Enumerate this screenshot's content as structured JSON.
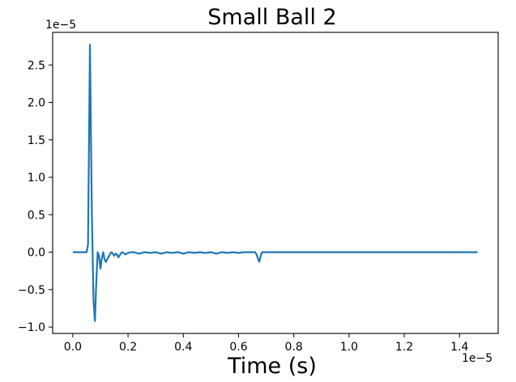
{
  "chart_data": {
    "type": "line",
    "title": "Small Ball 2",
    "xlabel": "Time (s)",
    "ylabel": "",
    "x_offset_label": "1e−5",
    "y_offset_label": "1e−5",
    "xlim": [
      -0.073,
      1.54
    ],
    "ylim": [
      -1.085,
      2.935
    ],
    "x_ticks": [
      0.0,
      0.2,
      0.4,
      0.6,
      0.8,
      1.0,
      1.2,
      1.4
    ],
    "x_tick_labels": [
      "0.0",
      "0.2",
      "0.4",
      "0.6",
      "0.8",
      "1.0",
      "1.2",
      "1.4"
    ],
    "y_ticks": [
      -1.0,
      -0.5,
      0.0,
      0.5,
      1.0,
      1.5,
      2.0,
      2.5
    ],
    "y_tick_labels": [
      "−1.0",
      "−0.5",
      "0.0",
      "0.5",
      "1.0",
      "1.5",
      "2.0",
      "2.5"
    ],
    "grid": false,
    "series": [
      {
        "color": "#1f77b4",
        "x": [
          0.0,
          0.02,
          0.04,
          0.05,
          0.055,
          0.062,
          0.069,
          0.075,
          0.08,
          0.085,
          0.09,
          0.095,
          0.1,
          0.105,
          0.11,
          0.115,
          0.12,
          0.125,
          0.13,
          0.135,
          0.14,
          0.145,
          0.15,
          0.155,
          0.16,
          0.165,
          0.17,
          0.175,
          0.18,
          0.19,
          0.2,
          0.21,
          0.22,
          0.24,
          0.26,
          0.28,
          0.3,
          0.32,
          0.34,
          0.36,
          0.38,
          0.4,
          0.42,
          0.44,
          0.46,
          0.48,
          0.5,
          0.52,
          0.54,
          0.56,
          0.58,
          0.6,
          0.62,
          0.64,
          0.65,
          0.66,
          0.665,
          0.67,
          0.675,
          0.68,
          0.685,
          0.69,
          0.7,
          0.75,
          0.8,
          0.9,
          1.0,
          1.1,
          1.2,
          1.3,
          1.4,
          1.465
        ],
        "y": [
          0.0,
          0.0,
          0.0,
          0.0,
          0.1,
          2.77,
          0.5,
          -0.65,
          -0.92,
          -0.4,
          0.0,
          -0.05,
          -0.22,
          -0.08,
          0.0,
          -0.1,
          -0.13,
          -0.09,
          -0.06,
          -0.02,
          0.0,
          -0.02,
          -0.05,
          -0.02,
          -0.03,
          -0.07,
          -0.04,
          -0.01,
          0.0,
          -0.03,
          -0.01,
          0.0,
          0.0,
          -0.02,
          0.0,
          -0.01,
          0.0,
          -0.02,
          0.0,
          -0.01,
          0.0,
          -0.02,
          0.0,
          -0.01,
          0.0,
          -0.01,
          0.0,
          -0.02,
          0.0,
          -0.01,
          0.0,
          -0.01,
          0.0,
          0.0,
          0.0,
          0.0,
          -0.03,
          -0.08,
          -0.13,
          -0.05,
          0.0,
          0.0,
          0.0,
          0.0,
          0.0,
          0.0,
          0.0,
          0.0,
          0.0,
          0.0,
          0.0,
          0.0
        ]
      }
    ]
  }
}
